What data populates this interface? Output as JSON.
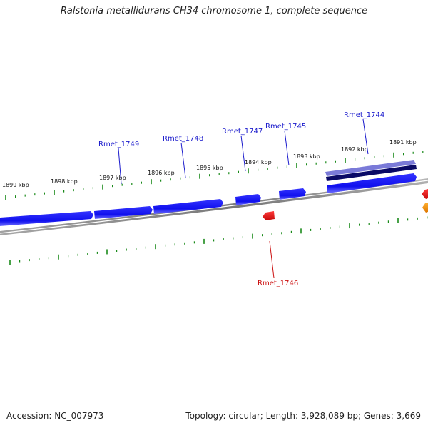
{
  "title": "Ralstonia metallidurans CH34 chromosome 1, complete sequence",
  "footer": {
    "accession_label": "Accession:",
    "accession": "NC_007973",
    "summary": "Topology: circular; Length: 3,928,089 bp; Genes: 3,669"
  },
  "colors": {
    "forward_gene": "#1010ee",
    "reverse_gene": "#e51212",
    "orange_gene": "#ee8800",
    "highlight_gene_top": "#7a7ad8",
    "highlight_gene_bottom": "#0a0a66",
    "backbone": "#858585",
    "tick": "#1a8a1a",
    "label_forward": "#1a1acc",
    "label_reverse": "#cc1111"
  },
  "kbp_ticks": [
    {
      "label": "1899 kbp"
    },
    {
      "label": "1898 kbp"
    },
    {
      "label": "1897 kbp"
    },
    {
      "label": "1896 kbp"
    },
    {
      "label": "1895 kbp"
    },
    {
      "label": "1894 kbp"
    },
    {
      "label": "1893 kbp"
    },
    {
      "label": "1892 kbp"
    },
    {
      "label": "1891 kbp"
    }
  ],
  "gene_labels": [
    {
      "name": "Rmet_1749",
      "strand": "forward"
    },
    {
      "name": "Rmet_1748",
      "strand": "forward"
    },
    {
      "name": "Rmet_1747",
      "strand": "forward"
    },
    {
      "name": "Rmet_1745",
      "strand": "forward"
    },
    {
      "name": "Rmet_1744",
      "strand": "forward"
    },
    {
      "name": "Rmet_1746",
      "strand": "reverse"
    }
  ]
}
